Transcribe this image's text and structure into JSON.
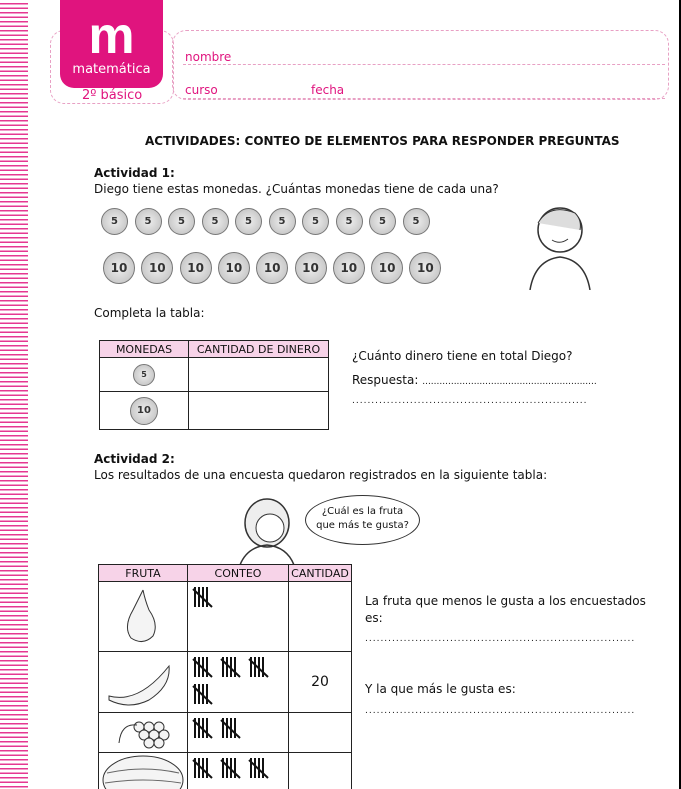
{
  "header": {
    "logo_letter": "m",
    "subject": "matemática",
    "grade": "2º básico",
    "field_name": "nombre",
    "field_course": "curso",
    "field_date": "fecha"
  },
  "title": "ACTIVIDADES: CONTEO DE ELEMENTOS PARA RESPONDER PREGUNTAS",
  "activity1": {
    "heading": "Actividad 1:",
    "prompt": "Diego tiene estas monedas. ¿Cuántas monedas tiene de cada una?",
    "coins": [
      {
        "value": "5",
        "count": 10
      },
      {
        "value": "10",
        "count": 9
      }
    ],
    "table_prompt": "Completa la tabla:",
    "table_headers": [
      "MONEDAS",
      "CANTIDAD DE DINERO"
    ],
    "question": "¿Cuánto dinero tiene en total Diego?",
    "answer_label": "Respuesta: ",
    "dots": "............................................................."
  },
  "activity2": {
    "heading": "Actividad 2:",
    "prompt": "Los resultados de una encuesta quedaron registrados en la siguiente tabla:",
    "bubble": [
      "¿Cuál es la fruta",
      "que más te gusta?"
    ],
    "table_headers": [
      "FRUTA",
      "CONTEO",
      "CANTIDAD"
    ],
    "rows": [
      {
        "fruit": "pear",
        "tally": 5,
        "amount": ""
      },
      {
        "fruit": "banana",
        "tally": 20,
        "amount": "20"
      },
      {
        "fruit": "grapes",
        "tally": 10,
        "amount": ""
      },
      {
        "fruit": "watermelon",
        "tally": 15,
        "amount": ""
      }
    ],
    "q1": "La fruta que menos le gusta a los encuestados",
    "q1b": "es:",
    "q2": "Y la que más le gusta es:",
    "dots": "......................................................................"
  },
  "colors": {
    "brand": "#e0147e",
    "header_fill": "#f7d3e8"
  }
}
